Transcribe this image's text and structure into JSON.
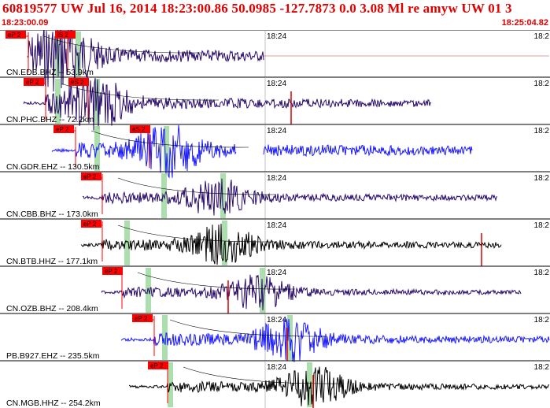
{
  "header": {
    "title": "60819577 UW Jul 16, 2014 18:23:00.86   50.0985 -127.7873  0.0 3.08 Ml re amyw UW 01   3",
    "start_time": "18:23:00.09",
    "end_time": "18:25:04.82"
  },
  "colors": {
    "accent": "#e00000",
    "trace_navy": "#2a0b6b",
    "trace_blue": "#1a1aff",
    "trace_black": "#000000",
    "pick_flag": "#ff0000",
    "window_band": "#9fd89f"
  },
  "minute_label": "18:24",
  "right_edge_label": "18:2",
  "traces": [
    {
      "label": "CN.EDB.BHZ -- 53.9km",
      "color": "trace_navy",
      "picks": [
        "eP 2",
        "iS 2"
      ],
      "ptime": "18:23:06",
      "stime": "18:23:12"
    },
    {
      "label": "CN.PHC.BHZ -- 72.2km",
      "color": "trace_navy",
      "picks": [
        "eP 2",
        "eS 2"
      ],
      "ptime": "18:23:09",
      "stime": "18:23:16"
    },
    {
      "label": "CN.GDR.EHZ -- 130.5km",
      "color": "trace_blue",
      "picks": [
        "eP 2",
        "eS 2"
      ],
      "ptime": "18:23:18",
      "stime": "18:23:27"
    },
    {
      "label": "CN.CBB.BHZ -- 173.0km",
      "color": "trace_navy",
      "picks": [
        "eP 2"
      ],
      "ptime": "18:23:23",
      "stime": ""
    },
    {
      "label": "CN.BTB.HHZ -- 177.1km",
      "color": "trace_black",
      "picks": [
        "eP 2"
      ],
      "ptime": "18:23:24",
      "stime": ""
    },
    {
      "label": "CN.OZB.BHZ -- 208.4km",
      "color": "trace_navy",
      "picks": [
        "eP 2"
      ],
      "ptime": "18:23:28",
      "stime": ""
    },
    {
      "label": "PB.B927.EHZ -- 235.5km",
      "color": "trace_blue",
      "picks": [
        "eP 2"
      ],
      "ptime": "18:23:32",
      "stime": ""
    },
    {
      "label": "CN.MGB.HHZ -- 254.2km",
      "color": "trace_black",
      "picks": [
        "eP 2"
      ],
      "ptime": "18:23:35",
      "stime": ""
    }
  ]
}
